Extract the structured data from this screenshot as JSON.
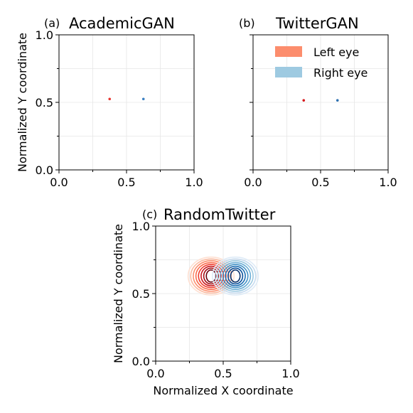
{
  "chart_data": [
    {
      "type": "scatter",
      "panel_label": "(a)",
      "title": "AcademicGAN",
      "xlabel": "",
      "ylabel": "Normalized Y coordinate",
      "xlim": [
        0.0,
        1.0
      ],
      "ylim": [
        0.0,
        1.0
      ],
      "x_ticks": [
        "0.0",
        "0.5",
        "1.0"
      ],
      "y_ticks": [
        "0.0",
        "0.5",
        "1.0"
      ],
      "grid": true,
      "series": [
        {
          "name": "Left eye",
          "color": "#e8332f",
          "points": [
            [
              0.375,
              0.525
            ]
          ]
        },
        {
          "name": "Right eye",
          "color": "#3a7fc1",
          "points": [
            [
              0.625,
              0.525
            ]
          ]
        }
      ]
    },
    {
      "type": "scatter",
      "panel_label": "(b)",
      "title": "TwitterGAN",
      "xlabel": "",
      "ylabel": "",
      "xlim": [
        0.0,
        1.0
      ],
      "ylim": [
        0.0,
        1.0
      ],
      "x_ticks": [
        "0.0",
        "0.5",
        "1.0"
      ],
      "y_ticks": [],
      "grid": true,
      "legend_position": "top-right",
      "legend": [
        {
          "name": "Left eye",
          "color": "#fc8d6d"
        },
        {
          "name": "Right eye",
          "color": "#9ecae1"
        }
      ],
      "series": [
        {
          "name": "Left eye",
          "color": "#d7191c",
          "points": [
            [
              0.375,
              0.515
            ]
          ]
        },
        {
          "name": "Right eye",
          "color": "#2c6fb0",
          "points": [
            [
              0.625,
              0.515
            ]
          ]
        }
      ]
    },
    {
      "type": "contour",
      "panel_label": "(c)",
      "title": "RandomTwitter",
      "xlabel": "Normalized X coordinate",
      "ylabel": "Normalized Y coordinate",
      "xlim": [
        0.0,
        1.0
      ],
      "ylim": [
        0.0,
        1.0
      ],
      "x_ticks": [
        "0.0",
        "0.5",
        "1.0"
      ],
      "y_ticks": [
        "0.0",
        "0.5",
        "1.0"
      ],
      "grid": true,
      "series": [
        {
          "name": "Left eye",
          "colormap": "Reds",
          "center": [
            0.41,
            0.63
          ],
          "spread": [
            0.035,
            0.045
          ],
          "max_spread": [
            0.17,
            0.14
          ]
        },
        {
          "name": "Right eye",
          "colormap": "Blues",
          "center": [
            0.59,
            0.63
          ],
          "spread": [
            0.035,
            0.045
          ],
          "max_spread": [
            0.17,
            0.14
          ]
        }
      ]
    }
  ]
}
